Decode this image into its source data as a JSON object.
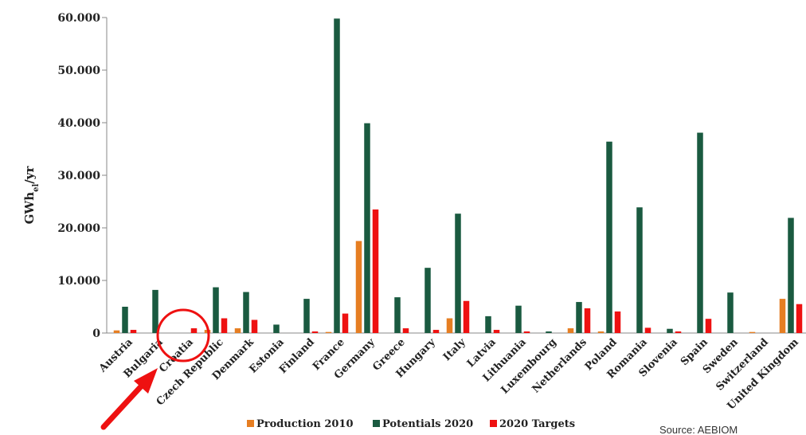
{
  "chart_data": {
    "type": "bar",
    "ylabel": "GWh",
    "ylabel_sub": "el",
    "ylabel_suffix": "/yr",
    "ylim": [
      0,
      60000
    ],
    "yticks": [
      0,
      10000,
      20000,
      30000,
      40000,
      50000,
      60000
    ],
    "ytick_labels": [
      "0",
      "10.000",
      "20.000",
      "30.000",
      "40.000",
      "50.000",
      "60.000"
    ],
    "categories": [
      "Austria",
      "Bulgaria",
      "Croatia",
      "Czech Republic",
      "Denmark",
      "Estonia",
      "Finland",
      "France",
      "Germany",
      "Greece",
      "Hungary",
      "Italy",
      "Latvia",
      "Lithuania",
      "Luxembourg",
      "Netherlands",
      "Poland",
      "Romania",
      "Slovenia",
      "Spain",
      "Sweden",
      "Switzerland",
      "United Kingdom"
    ],
    "series": [
      {
        "name": "Production 2010",
        "color": "#e67e22",
        "values": [
          500,
          0,
          0,
          600,
          900,
          0,
          0,
          200,
          17500,
          0,
          0,
          2800,
          0,
          0,
          0,
          900,
          300,
          0,
          0,
          0,
          0,
          200,
          6500
        ]
      },
      {
        "name": "Potentials 2020",
        "color": "#1a5a40",
        "values": [
          5000,
          8200,
          0,
          8700,
          7800,
          1600,
          6500,
          59800,
          39900,
          6800,
          12400,
          22700,
          3200,
          5200,
          300,
          5900,
          36400,
          23900,
          800,
          38100,
          7700,
          0,
          21900
        ]
      },
      {
        "name": "2020 Targets",
        "color": "#ee1111",
        "values": [
          600,
          0,
          900,
          2800,
          2500,
          0,
          300,
          3700,
          23500,
          900,
          600,
          6100,
          600,
          300,
          0,
          4700,
          4100,
          1000,
          300,
          2700,
          0,
          0,
          5500
        ]
      }
    ],
    "legend_position": "bottom",
    "grid": false,
    "source": "Source: AEBIOM",
    "annotations": {
      "highlight": "Croatia",
      "marker": "red circle and arrow"
    }
  }
}
